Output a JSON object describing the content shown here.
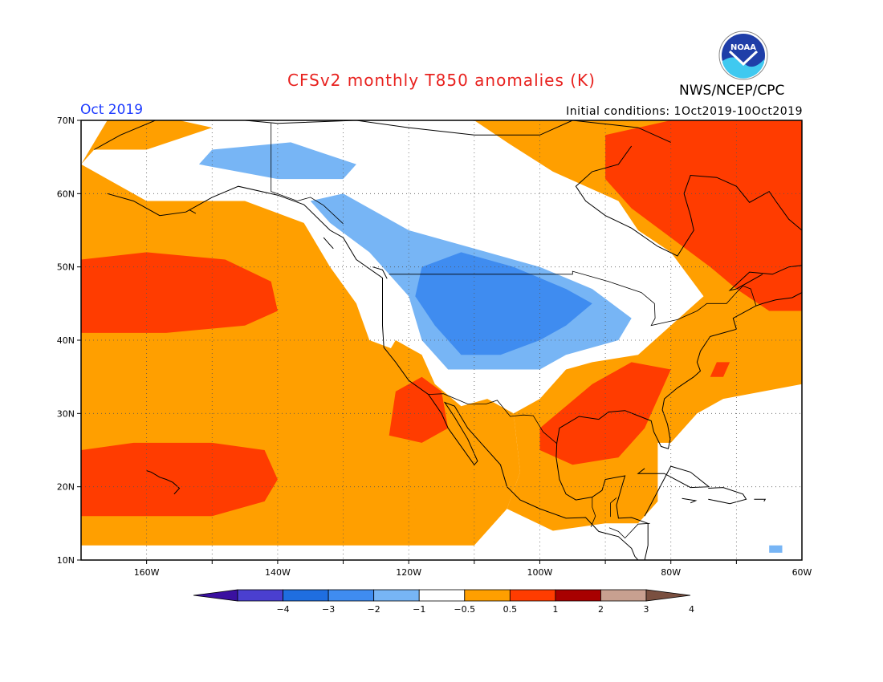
{
  "header": {
    "title": "CFSv2 monthly T850 anomalies (K)",
    "agency": "NWS/NCEP/CPC",
    "logo_text": "NOAA",
    "month": "Oct 2019",
    "initial_conditions": "Initial conditions: 1Oct2019-10Oct2019"
  },
  "chart_data": {
    "type": "heatmap",
    "lon_range": [
      -170,
      -60
    ],
    "lat_range": [
      10,
      70
    ],
    "lat_ticks": [
      "10N",
      "20N",
      "30N",
      "40N",
      "50N",
      "60N",
      "70N"
    ],
    "lon_ticks": [
      "160W",
      "140W",
      "120W",
      "100W",
      "80W",
      "60W"
    ],
    "colorbar": {
      "labels": [
        "-4",
        "-3",
        "-2",
        "-1",
        "-0.5",
        "0.5",
        "1",
        "2",
        "3",
        "4"
      ],
      "colors": [
        "#3a10a0",
        "#4a3fd0",
        "#1f6ee0",
        "#3f8cf0",
        "#77b5f5",
        "#ffffff",
        "#ff9f00",
        "#ff3c00",
        "#a80000",
        "#c8a090",
        "#7a5040"
      ]
    },
    "anomaly_regions": [
      {
        "level": "0.5 to 1",
        "color": "#ff9f00",
        "polygon": [
          [
            -170,
            12
          ],
          [
            -120,
            12
          ],
          [
            -118,
            18
          ],
          [
            -115,
            24
          ],
          [
            -115,
            32
          ],
          [
            -118,
            34
          ],
          [
            -120,
            38
          ],
          [
            -126,
            40
          ],
          [
            -128,
            45
          ],
          [
            -132,
            50
          ],
          [
            -136,
            56
          ],
          [
            -145,
            59
          ],
          [
            -152,
            59
          ],
          [
            -160,
            59
          ],
          [
            -166,
            62
          ],
          [
            -170,
            64
          ]
        ]
      },
      {
        "level": "0.5 to 1",
        "color": "#ff9f00",
        "polygon": [
          [
            -170,
            64
          ],
          [
            -166,
            70
          ],
          [
            -155,
            70
          ],
          [
            -150,
            69
          ],
          [
            -160,
            66
          ],
          [
            -168,
            66
          ]
        ]
      },
      {
        "level": "0.5 to 1",
        "color": "#ff9f00",
        "polygon": [
          [
            -120,
            12
          ],
          [
            -110,
            12
          ],
          [
            -105,
            17
          ],
          [
            -103,
            22
          ],
          [
            -104,
            30
          ],
          [
            -108,
            32
          ],
          [
            -112,
            31
          ],
          [
            -116,
            34
          ],
          [
            -118,
            38
          ],
          [
            -122,
            40
          ],
          [
            -124,
            37
          ],
          [
            -120,
            33
          ],
          [
            -117,
            29
          ],
          [
            -118,
            22
          ]
        ]
      },
      {
        "level": "0.5 to 1",
        "color": "#ff9f00",
        "polygon": [
          [
            -105,
            17
          ],
          [
            -98,
            14
          ],
          [
            -90,
            15
          ],
          [
            -85,
            15
          ],
          [
            -82,
            18
          ],
          [
            -82,
            26
          ],
          [
            -80,
            26
          ],
          [
            -76,
            30
          ],
          [
            -72,
            32
          ],
          [
            -60,
            34
          ],
          [
            -60,
            70
          ],
          [
            -110,
            70
          ],
          [
            -105,
            67
          ],
          [
            -98,
            63
          ],
          [
            -88,
            59
          ],
          [
            -85,
            55
          ],
          [
            -80,
            52
          ],
          [
            -75,
            46
          ],
          [
            -80,
            42
          ],
          [
            -85,
            38
          ],
          [
            -92,
            37
          ],
          [
            -96,
            36
          ],
          [
            -100,
            32
          ],
          [
            -104,
            30
          ],
          [
            -103,
            22
          ]
        ]
      }
    ],
    "strong_regions": [
      {
        "level": "1 to 2",
        "color": "#ff3c00",
        "polygon": [
          [
            -170,
            41
          ],
          [
            -157,
            41
          ],
          [
            -145,
            42
          ],
          [
            -140,
            44
          ],
          [
            -141,
            48
          ],
          [
            -148,
            51
          ],
          [
            -160,
            52
          ],
          [
            -170,
            51
          ]
        ]
      },
      {
        "level": "1 to 2",
        "color": "#ff3c00",
        "polygon": [
          [
            -170,
            16
          ],
          [
            -160,
            16
          ],
          [
            -150,
            16
          ],
          [
            -142,
            18
          ],
          [
            -140,
            21
          ],
          [
            -142,
            25
          ],
          [
            -150,
            26
          ],
          [
            -162,
            26
          ],
          [
            -170,
            25
          ]
        ]
      },
      {
        "level": "1 to 2",
        "color": "#ff3c00",
        "polygon": [
          [
            -123,
            27
          ],
          [
            -118,
            26
          ],
          [
            -114,
            28
          ],
          [
            -115,
            33
          ],
          [
            -118,
            35
          ],
          [
            -122,
            33
          ]
        ]
      },
      {
        "level": "1 to 2",
        "color": "#ff3c00",
        "polygon": [
          [
            -100,
            28
          ],
          [
            -96,
            31
          ],
          [
            -92,
            34
          ],
          [
            -86,
            37
          ],
          [
            -80,
            36
          ],
          [
            -82,
            32
          ],
          [
            -84,
            28
          ],
          [
            -88,
            24
          ],
          [
            -95,
            23
          ],
          [
            -100,
            25
          ]
        ]
      },
      {
        "level": "1 to 2",
        "color": "#ff3c00",
        "polygon": [
          [
            -90,
            68
          ],
          [
            -80,
            70
          ],
          [
            -60,
            70
          ],
          [
            -60,
            44
          ],
          [
            -65,
            44
          ],
          [
            -70,
            47
          ],
          [
            -74,
            50
          ],
          [
            -80,
            54
          ],
          [
            -86,
            58
          ],
          [
            -90,
            62
          ]
        ]
      },
      {
        "level": "1 to 2",
        "color": "#ff3c00",
        "polygon": [
          [
            -74,
            35
          ],
          [
            -72,
            35
          ],
          [
            -71,
            37
          ],
          [
            -73,
            37
          ]
        ]
      }
    ],
    "cool_regions": [
      {
        "level": "-1 to -0.5",
        "color": "#77b5f5",
        "polygon": [
          [
            -130,
            62
          ],
          [
            -128,
            64
          ],
          [
            -138,
            67
          ],
          [
            -150,
            66
          ],
          [
            -152,
            64
          ],
          [
            -140,
            62
          ]
        ]
      },
      {
        "level": "-1 to -0.5",
        "color": "#77b5f5",
        "polygon": [
          [
            -135,
            59
          ],
          [
            -130,
            60
          ],
          [
            -120,
            55
          ],
          [
            -108,
            52
          ],
          [
            -100,
            50
          ],
          [
            -92,
            47
          ],
          [
            -86,
            43
          ],
          [
            -88,
            40
          ],
          [
            -96,
            38
          ],
          [
            -100,
            36
          ],
          [
            -108,
            36
          ],
          [
            -114,
            36
          ],
          [
            -118,
            40
          ],
          [
            -120,
            46
          ],
          [
            -126,
            52
          ],
          [
            -132,
            56
          ]
        ]
      },
      {
        "level": "-2 to -1",
        "color": "#3f8cf0",
        "polygon": [
          [
            -118,
            50
          ],
          [
            -112,
            52
          ],
          [
            -104,
            50
          ],
          [
            -96,
            47
          ],
          [
            -92,
            45
          ],
          [
            -96,
            42
          ],
          [
            -100,
            40
          ],
          [
            -106,
            38
          ],
          [
            -112,
            38
          ],
          [
            -116,
            42
          ],
          [
            -119,
            46
          ]
        ]
      },
      {
        "level": "-1 to -0.5",
        "color": "#77b5f5",
        "polygon": [
          [
            -65,
            11
          ],
          [
            -63,
            11
          ],
          [
            -63,
            12
          ],
          [
            -65,
            12
          ]
        ]
      }
    ]
  }
}
